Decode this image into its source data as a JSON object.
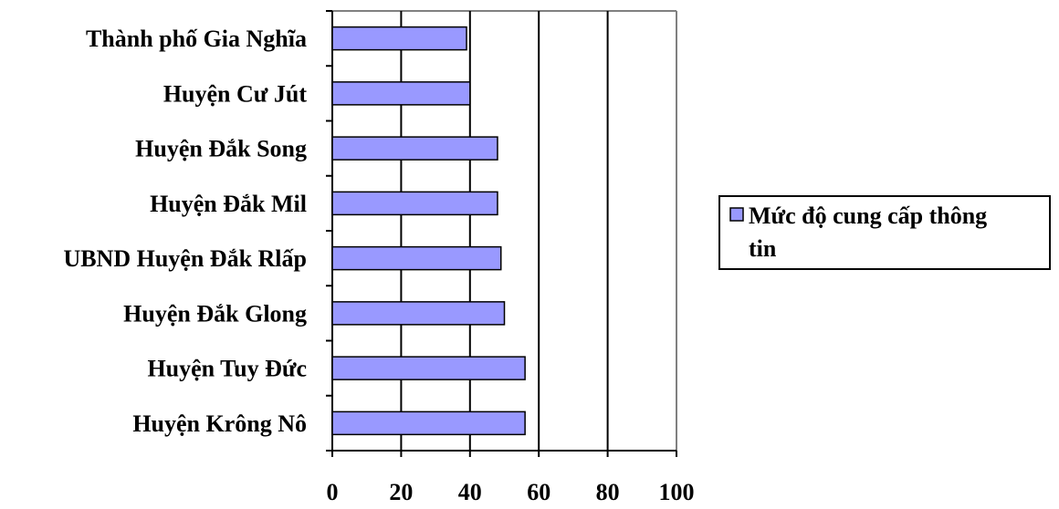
{
  "chart_data": {
    "type": "bar",
    "orientation": "horizontal",
    "categories": [
      "Thành phố Gia Nghĩa",
      "Huyện Cư Jút",
      "Huyện Đắk Song",
      "Huyện Đắk Mil",
      "UBND Huyện Đắk Rlấp",
      "Huyện Đắk Glong",
      "Huyện Tuy Đức",
      "Huyện Krông Nô"
    ],
    "series": [
      {
        "name": "Mức độ cung cấp thông tin",
        "values": [
          39,
          40,
          48,
          48,
          49,
          50,
          56,
          56
        ]
      }
    ],
    "x_ticks": [
      "0",
      "20",
      "40",
      "60",
      "80",
      "100"
    ],
    "xlim": [
      0,
      100
    ],
    "title": "",
    "xlabel": "",
    "ylabel": "",
    "grid": "vertical",
    "legend_position": "right",
    "legend_lines": [
      "Mức độ cung cấp thông",
      "tin"
    ],
    "colors": {
      "bar_fill": "#9999ff",
      "bar_stroke": "#000000",
      "grid": "#000000",
      "frame": "#808080"
    }
  }
}
